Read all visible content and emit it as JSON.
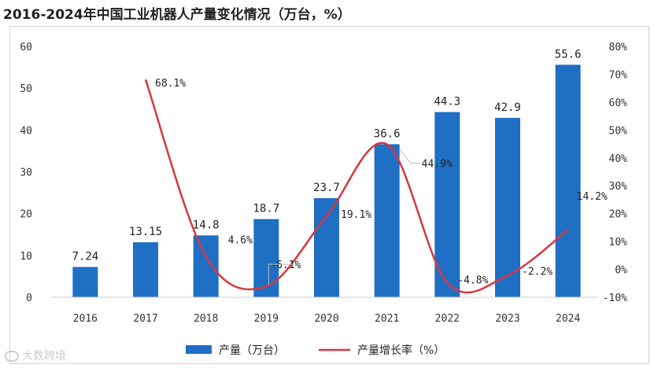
{
  "title": "2016-2024年中国工业机器人产量变化情况（万台，%）",
  "watermark": "大数跨境",
  "chart_data": {
    "type": "bar",
    "title": "2016-2024年中国工业机器人产量变化情况（万台，%）",
    "categories": [
      "2016",
      "2017",
      "2018",
      "2019",
      "2020",
      "2021",
      "2022",
      "2023",
      "2024"
    ],
    "series": [
      {
        "name": "产量（万台）",
        "type": "bar",
        "axis": "left",
        "color": "#1f6fc4",
        "values": [
          7.24,
          13.15,
          14.8,
          18.7,
          23.7,
          36.6,
          44.3,
          42.9,
          55.6
        ],
        "labels": [
          "7.24",
          "13.15",
          "14.8",
          "18.7",
          "23.7",
          "36.6",
          "44.3",
          "42.9",
          "55.6"
        ]
      },
      {
        "name": "产量增长率（%）",
        "type": "line",
        "axis": "right",
        "color": "#d9363e",
        "values": [
          null,
          68.1,
          4.6,
          -6.1,
          19.1,
          44.9,
          -4.8,
          -2.2,
          14.2
        ],
        "labels": [
          "",
          "68.1%",
          "4.6%",
          "-6.1%",
          "19.1%",
          "44.9%",
          "-4.8%",
          "-2.2%",
          "14.2%"
        ]
      }
    ],
    "y_left": {
      "min": 0,
      "max": 60,
      "ticks": [
        "0",
        "10",
        "20",
        "30",
        "40",
        "50",
        "60"
      ]
    },
    "y_right": {
      "min": -10,
      "max": 80,
      "ticks": [
        "-10%",
        "0%",
        "10%",
        "20%",
        "30%",
        "40%",
        "50%",
        "60%",
        "70%",
        "80%"
      ]
    },
    "grid": false,
    "legend": {
      "position": "bottom",
      "items": [
        "产量（万台）",
        "产量增长率（%）"
      ]
    }
  }
}
